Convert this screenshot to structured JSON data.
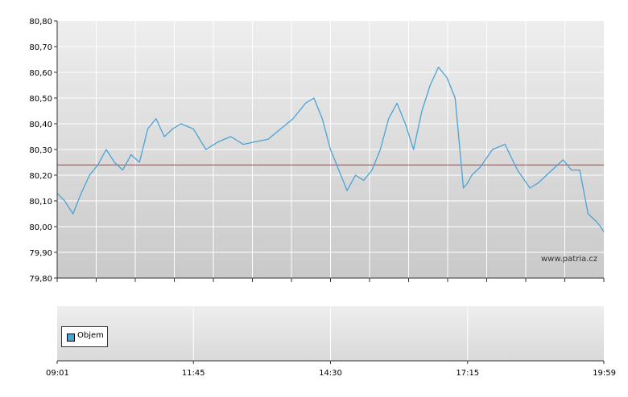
{
  "chart_data": {
    "type": "line",
    "series": [
      {
        "color": "#4aa3d6",
        "x": [
          "09:01",
          "09:10",
          "09:20",
          "09:30",
          "09:40",
          "09:50",
          "10:00",
          "10:10",
          "10:20",
          "10:30",
          "10:40",
          "10:50",
          "11:00",
          "11:10",
          "11:20",
          "11:30",
          "11:45",
          "12:00",
          "12:15",
          "12:30",
          "12:45",
          "13:00",
          "13:15",
          "13:30",
          "13:45",
          "14:00",
          "14:10",
          "14:20",
          "14:30",
          "14:40",
          "14:50",
          "15:00",
          "15:10",
          "15:20",
          "15:30",
          "15:40",
          "15:50",
          "16:00",
          "16:10",
          "16:20",
          "16:30",
          "16:40",
          "16:50",
          "17:00",
          "17:10",
          "17:15",
          "17:20",
          "17:30",
          "17:45",
          "18:00",
          "18:15",
          "18:30",
          "18:40",
          "18:50",
          "19:00",
          "19:10",
          "19:20",
          "19:30",
          "19:40",
          "19:50",
          "19:55",
          "19:59"
        ],
        "values": [
          80.13,
          80.1,
          80.05,
          80.13,
          80.2,
          80.24,
          80.3,
          80.25,
          80.22,
          80.28,
          80.25,
          80.38,
          80.42,
          80.35,
          80.38,
          80.4,
          80.38,
          80.3,
          80.33,
          80.35,
          80.32,
          80.33,
          80.34,
          80.38,
          80.42,
          80.48,
          80.5,
          80.42,
          80.3,
          80.22,
          80.14,
          80.2,
          80.18,
          80.22,
          80.3,
          80.42,
          80.48,
          80.4,
          80.3,
          80.45,
          80.55,
          80.62,
          80.58,
          80.5,
          80.15,
          80.17,
          80.2,
          80.23,
          80.3,
          80.32,
          80.22,
          80.15,
          80.17,
          80.2,
          80.23,
          80.26,
          80.22,
          80.22,
          80.05,
          80.02,
          80.0,
          79.98
        ]
      }
    ],
    "reference_line": {
      "value": 80.24,
      "color": "#cc3333"
    },
    "ylim": [
      79.8,
      80.8
    ],
    "yticks": [
      "80,80",
      "80,70",
      "80,60",
      "80,50",
      "80,40",
      "80,30",
      "80,20",
      "80,10",
      "80,00",
      "79,90",
      "79,80"
    ],
    "xticks": [
      "09:01",
      "11:45",
      "14:30",
      "17:15",
      "19:59"
    ],
    "grid": true,
    "legend": "bottom-left",
    "legend_label": "Objem",
    "legend_color": "#4aa3d6",
    "watermark": "www.patria.cz"
  }
}
